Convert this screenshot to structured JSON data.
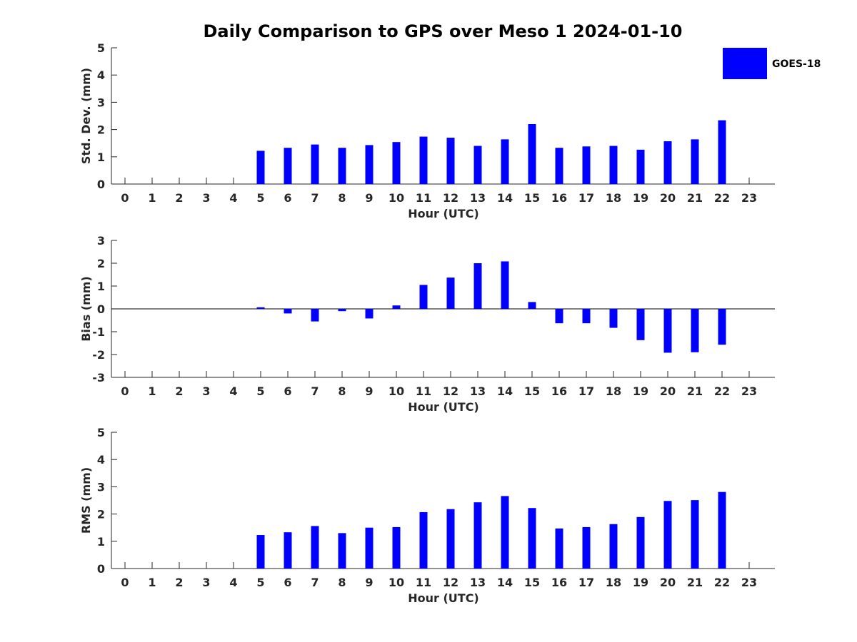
{
  "figure": {
    "title": "Daily Comparison to GPS over Meso 1 2024-01-10",
    "bar_color": "#0000ff",
    "legend": {
      "label": "GOES-18"
    }
  },
  "chart_data": [
    {
      "type": "bar",
      "title": "",
      "xlabel": "Hour (UTC)",
      "ylabel": "Std. Dev. (mm)",
      "categories": [
        "0",
        "1",
        "2",
        "3",
        "4",
        "5",
        "6",
        "7",
        "8",
        "9",
        "10",
        "11",
        "12",
        "13",
        "14",
        "15",
        "16",
        "17",
        "18",
        "19",
        "20",
        "21",
        "22",
        "23"
      ],
      "series": [
        {
          "name": "GOES-18",
          "values": [
            null,
            null,
            null,
            null,
            null,
            1.22,
            1.33,
            1.45,
            1.33,
            1.43,
            1.54,
            1.74,
            1.7,
            1.4,
            1.64,
            2.2,
            1.33,
            1.38,
            1.4,
            1.26,
            1.57,
            1.64,
            2.34,
            null
          ]
        }
      ],
      "ylim": [
        0,
        5
      ],
      "yticks": [
        0,
        1,
        2,
        3,
        4,
        5
      ],
      "grid": false,
      "legend": "top-right"
    },
    {
      "type": "bar",
      "title": "",
      "xlabel": "Hour (UTC)",
      "ylabel": "Bias (mm)",
      "categories": [
        "0",
        "1",
        "2",
        "3",
        "4",
        "5",
        "6",
        "7",
        "8",
        "9",
        "10",
        "11",
        "12",
        "13",
        "14",
        "15",
        "16",
        "17",
        "18",
        "19",
        "20",
        "21",
        "22",
        "23"
      ],
      "series": [
        {
          "name": "GOES-18",
          "values": [
            null,
            null,
            null,
            null,
            null,
            0.07,
            -0.2,
            -0.55,
            -0.1,
            -0.42,
            0.15,
            1.05,
            1.37,
            2.0,
            2.08,
            0.3,
            -0.63,
            -0.63,
            -0.83,
            -1.37,
            -1.92,
            -1.9,
            -1.57,
            null
          ]
        }
      ],
      "ylim": [
        -3,
        3
      ],
      "yticks": [
        -3,
        -2,
        -1,
        0,
        1,
        2,
        3
      ],
      "zero_line": true,
      "grid": false
    },
    {
      "type": "bar",
      "title": "",
      "xlabel": "Hour (UTC)",
      "ylabel": "RMS (mm)",
      "categories": [
        "0",
        "1",
        "2",
        "3",
        "4",
        "5",
        "6",
        "7",
        "8",
        "9",
        "10",
        "11",
        "12",
        "13",
        "14",
        "15",
        "16",
        "17",
        "18",
        "19",
        "20",
        "21",
        "22",
        "23"
      ],
      "series": [
        {
          "name": "GOES-18",
          "values": [
            null,
            null,
            null,
            null,
            null,
            1.23,
            1.33,
            1.56,
            1.3,
            1.5,
            1.52,
            2.07,
            2.18,
            2.43,
            2.66,
            2.22,
            1.47,
            1.52,
            1.63,
            1.89,
            2.48,
            2.51,
            2.81,
            null
          ]
        }
      ],
      "ylim": [
        0,
        5
      ],
      "yticks": [
        0,
        1,
        2,
        3,
        4,
        5
      ],
      "grid": false
    }
  ]
}
